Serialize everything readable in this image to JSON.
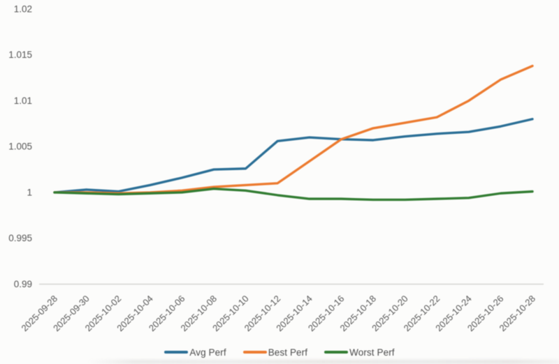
{
  "chart_data": {
    "type": "line",
    "title": "",
    "xlabel": "",
    "ylabel": "",
    "grid": false,
    "legend_position": "bottom-center",
    "ylim": [
      0.99,
      1.02
    ],
    "y_axis": {
      "tick_values": [
        1.02,
        1.015,
        1.01,
        1.005,
        1.0,
        0.995,
        0.99
      ],
      "tick_labels": [
        "1.02",
        "1.015",
        "1.01",
        "1.005",
        "1",
        "0.995",
        "0.99"
      ]
    },
    "x": [
      "2025-09-28",
      "2025-09-30",
      "2025-10-02",
      "2025-10-04",
      "2025-10-06",
      "2025-10-08",
      "2025-10-10",
      "2025-10-12",
      "2025-10-14",
      "2025-10-16",
      "2025-10-18",
      "2025-10-20",
      "2025-10-22",
      "2025-10-24",
      "2025-10-26",
      "2025-10-28"
    ],
    "series": [
      {
        "name": "Avg Perf",
        "color": "#2b6f96",
        "values": [
          1.0,
          1.0003,
          1.0001,
          1.0008,
          1.0016,
          1.0025,
          1.0026,
          1.0056,
          1.006,
          1.0058,
          1.0057,
          1.0061,
          1.0064,
          1.0066,
          1.0072,
          1.008
        ]
      },
      {
        "name": "Best Perf",
        "color": "#ec7b30",
        "values": [
          1.0,
          1.0,
          0.9999,
          1.0,
          1.0002,
          1.0006,
          1.0008,
          1.001,
          1.0034,
          1.0058,
          1.007,
          1.0076,
          1.0082,
          1.01,
          1.0123,
          1.0138
        ]
      },
      {
        "name": "Worst Perf",
        "color": "#337d33",
        "values": [
          1.0,
          0.9999,
          0.9998,
          0.9999,
          1.0,
          1.0004,
          1.0002,
          0.9997,
          0.9993,
          0.9993,
          0.9992,
          0.9992,
          0.9993,
          0.9994,
          0.9999,
          1.0001
        ]
      }
    ],
    "axis_line_color": "#d6d6d2",
    "tick_text_color": "#565656"
  }
}
